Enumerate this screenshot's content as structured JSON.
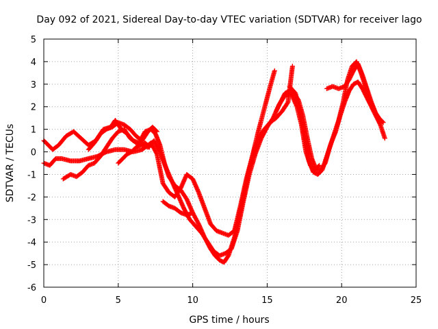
{
  "chart_data": {
    "type": "scatter",
    "title": "Day 092 of 2021, Sidereal Day-to-day VTEC variation (SDTVAR) for receiver lago",
    "xlabel": "GPS time / hours",
    "ylabel": "SDTVAR / TECUs",
    "xlim": [
      0,
      25
    ],
    "ylim": [
      -6,
      5
    ],
    "xticks": [
      0,
      5,
      10,
      15,
      20,
      25
    ],
    "yticks": [
      -6,
      -5,
      -4,
      -3,
      -2,
      -1,
      0,
      1,
      2,
      3,
      4,
      5
    ],
    "grid": true,
    "legend": "none",
    "marker": "plus",
    "color": "#ff0000",
    "series": [
      {
        "x": [
          0.0,
          0.3,
          0.6,
          1.0,
          1.5,
          2.0,
          2.5,
          3.0,
          3.5,
          4.0,
          4.5,
          4.8,
          5.2,
          5.6,
          6.0,
          6.4,
          6.8,
          7.2,
          7.5,
          7.8,
          8.1,
          8.4,
          8.8,
          9.2,
          9.6,
          10.0,
          10.4,
          10.8,
          11.2,
          11.5,
          11.8,
          12.1,
          12.4,
          12.8,
          13.2,
          13.6,
          14.0,
          14.4,
          14.8,
          15.2,
          15.5
        ],
        "y": [
          0.5,
          0.3,
          0.1,
          0.3,
          0.7,
          0.9,
          0.6,
          0.3,
          0.5,
          1.0,
          1.1,
          1.4,
          1.0,
          0.8,
          0.5,
          0.4,
          0.9,
          1.0,
          0.8,
          0.3,
          -0.5,
          -1.1,
          -1.5,
          -1.7,
          -2.1,
          -2.7,
          -3.2,
          -3.8,
          -4.3,
          -4.6,
          -4.8,
          -4.9,
          -4.6,
          -3.8,
          -2.6,
          -1.4,
          -0.2,
          0.9,
          1.9,
          2.9,
          3.6
        ]
      },
      {
        "x": [
          0.0,
          0.4,
          0.8,
          1.2,
          1.8,
          2.4,
          3.0,
          3.6,
          4.2,
          4.8,
          5.4,
          6.0,
          6.6,
          7.2,
          7.6,
          8.0,
          8.4,
          8.8,
          9.2,
          9.6,
          10.0,
          10.4,
          10.8,
          11.2,
          11.6,
          12.0,
          12.4,
          12.8,
          13.2,
          13.6,
          14.0,
          14.4,
          14.8,
          15.2,
          15.6,
          16.0,
          16.4,
          16.7
        ],
        "y": [
          -0.5,
          -0.6,
          -0.3,
          -0.3,
          -0.4,
          -0.4,
          -0.3,
          -0.2,
          0.0,
          0.1,
          0.1,
          0.0,
          0.1,
          0.4,
          -0.1,
          -1.4,
          -1.8,
          -2.0,
          -1.6,
          -1.0,
          -1.2,
          -1.8,
          -2.5,
          -3.2,
          -3.5,
          -3.6,
          -3.7,
          -3.5,
          -2.4,
          -1.2,
          -0.2,
          0.6,
          1.0,
          1.3,
          1.5,
          1.8,
          2.2,
          3.8
        ]
      },
      {
        "x": [
          1.3,
          1.8,
          2.2,
          2.6,
          3.0,
          3.4,
          3.8,
          4.2,
          4.6,
          5.0,
          5.4,
          5.8,
          6.2,
          6.6,
          7.0,
          7.4,
          7.8,
          8.2,
          8.6,
          9.0,
          9.4,
          9.8,
          10.2,
          10.6,
          11.0,
          11.4,
          11.8,
          12.2,
          12.6,
          13.0,
          13.4,
          13.8,
          14.2,
          14.6,
          15.0,
          15.4,
          15.8,
          16.2,
          16.6,
          17.0,
          17.3,
          17.6,
          17.9,
          18.2,
          18.5
        ],
        "y": [
          -1.2,
          -1.0,
          -1.1,
          -0.9,
          -0.6,
          -0.5,
          -0.2,
          0.2,
          0.6,
          0.9,
          1.0,
          0.6,
          0.4,
          0.3,
          0.2,
          0.5,
          0.0,
          -0.7,
          -1.3,
          -1.9,
          -2.5,
          -3.0,
          -3.3,
          -3.6,
          -4.0,
          -4.4,
          -4.6,
          -4.5,
          -4.3,
          -3.5,
          -2.2,
          -1.0,
          -0.1,
          0.6,
          1.1,
          1.5,
          2.1,
          2.5,
          2.6,
          2.0,
          1.2,
          0.0,
          -0.6,
          -0.8,
          -0.6
        ]
      },
      {
        "x": [
          8.0,
          8.4,
          8.8,
          9.2,
          9.6,
          10.0
        ],
        "y": [
          -2.2,
          -2.4,
          -2.5,
          -2.7,
          -2.8,
          -2.7
        ]
      },
      {
        "x": [
          15.6,
          15.9,
          16.2,
          16.5,
          16.8,
          17.1,
          17.4,
          17.7,
          18.0,
          18.3,
          18.6,
          18.9,
          19.2,
          19.5,
          19.8,
          20.1,
          20.4,
          20.7,
          21.0,
          21.3,
          21.6,
          21.9,
          22.2,
          22.5,
          22.8
        ],
        "y": [
          1.8,
          2.2,
          2.6,
          2.7,
          2.6,
          2.3,
          1.6,
          0.6,
          -0.3,
          -0.8,
          -0.8,
          -0.5,
          0.2,
          0.8,
          1.4,
          2.2,
          3.2,
          3.8,
          4.0,
          3.5,
          2.9,
          2.3,
          1.8,
          1.5,
          1.3
        ]
      },
      {
        "x": [
          16.5,
          16.9,
          17.2,
          17.5,
          17.8,
          18.1,
          18.4,
          18.7,
          19.0,
          19.3,
          19.6,
          19.9,
          20.2,
          20.5,
          20.8,
          21.1,
          21.4,
          21.7,
          22.0,
          22.3,
          22.6,
          22.9
        ],
        "y": [
          2.9,
          2.6,
          1.8,
          0.8,
          -0.4,
          -0.9,
          -1.0,
          -0.8,
          -0.2,
          0.4,
          0.9,
          1.6,
          2.2,
          2.7,
          3.0,
          3.1,
          2.8,
          2.4,
          2.0,
          1.6,
          1.2,
          0.6
        ]
      },
      {
        "x": [
          19.0,
          19.4,
          19.8,
          20.2,
          20.5,
          20.8,
          21.1,
          21.4,
          21.7,
          22.0,
          22.3,
          22.6
        ],
        "y": [
          2.8,
          2.9,
          2.8,
          2.9,
          3.2,
          3.6,
          3.9,
          3.4,
          2.8,
          2.2,
          1.7,
          1.4
        ]
      },
      {
        "x": [
          3.0,
          3.4,
          3.8,
          4.2,
          4.6,
          5.0,
          5.4,
          5.8,
          6.2,
          6.6,
          7.0,
          7.3,
          7.6
        ],
        "y": [
          0.1,
          0.4,
          0.8,
          1.0,
          1.1,
          1.3,
          1.2,
          1.0,
          0.7,
          0.5,
          0.9,
          1.1,
          0.9
        ]
      },
      {
        "x": [
          5.0,
          5.3,
          5.6,
          5.9,
          6.2,
          6.5,
          6.8,
          7.1
        ],
        "y": [
          -0.5,
          -0.3,
          -0.1,
          0.0,
          0.2,
          0.3,
          0.4,
          0.2
        ]
      }
    ]
  }
}
